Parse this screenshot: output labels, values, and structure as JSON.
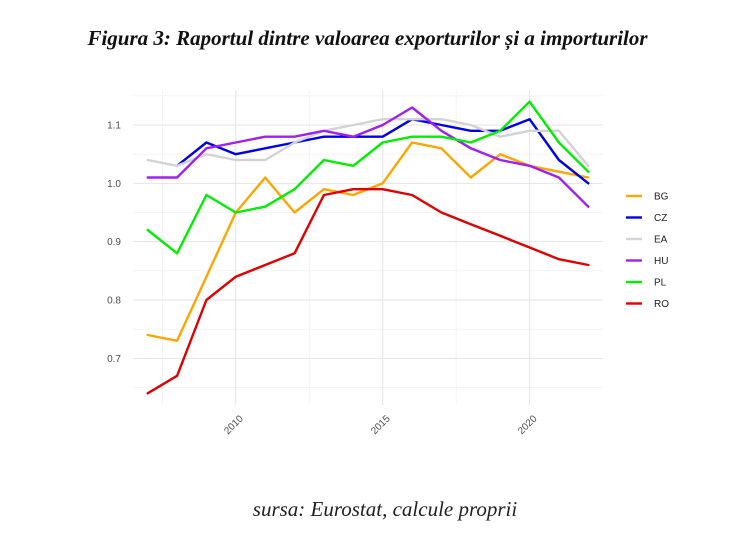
{
  "figure_title": "Figura 3: Raportul dintre valoarea exporturilor și a importurilor",
  "source_note": "sursa: Eurostat, calcule proprii",
  "chart_data": {
    "type": "line",
    "title": "",
    "xlabel": "",
    "ylabel": "",
    "x": [
      2007,
      2008,
      2009,
      2010,
      2011,
      2012,
      2013,
      2014,
      2015,
      2016,
      2017,
      2018,
      2019,
      2020,
      2021,
      2022
    ],
    "xlim": [
      2006.5,
      2022.5
    ],
    "ylim": [
      0.62,
      1.16
    ],
    "x_ticks": [
      2010,
      2015,
      2020
    ],
    "y_ticks": [
      0.7,
      0.8,
      0.9,
      1.0,
      1.1
    ],
    "grid": true,
    "legend_position": "right",
    "series": [
      {
        "name": "BG",
        "color": "#ffa500",
        "values": [
          0.74,
          0.73,
          0.84,
          0.95,
          1.01,
          0.95,
          0.99,
          0.98,
          1.0,
          1.07,
          1.06,
          1.01,
          1.05,
          1.03,
          1.02,
          1.01
        ]
      },
      {
        "name": "CZ",
        "color": "#0000e6",
        "values": [
          null,
          1.03,
          1.07,
          1.05,
          1.06,
          1.07,
          1.08,
          1.08,
          1.08,
          1.11,
          1.1,
          1.09,
          1.09,
          1.11,
          1.04,
          1.0
        ]
      },
      {
        "name": "EA",
        "color": "#d3d3d3",
        "values": [
          1.04,
          1.03,
          1.05,
          1.04,
          1.04,
          1.07,
          1.09,
          1.1,
          1.11,
          1.11,
          1.11,
          1.1,
          1.08,
          1.09,
          1.09,
          1.03
        ]
      },
      {
        "name": "HU",
        "color": "#a020f0",
        "values": [
          1.01,
          1.01,
          1.06,
          1.07,
          1.08,
          1.08,
          1.09,
          1.08,
          1.1,
          1.13,
          1.09,
          1.06,
          1.04,
          1.03,
          1.01,
          0.96
        ]
      },
      {
        "name": "PL",
        "color": "#00ee00",
        "values": [
          0.92,
          0.88,
          0.98,
          0.95,
          0.96,
          0.99,
          1.04,
          1.03,
          1.07,
          1.08,
          1.08,
          1.07,
          1.09,
          1.14,
          1.07,
          1.02
        ]
      },
      {
        "name": "RO",
        "color": "#e00000",
        "values": [
          0.64,
          0.67,
          0.8,
          0.84,
          0.86,
          0.88,
          0.98,
          0.99,
          0.99,
          0.98,
          0.95,
          0.93,
          0.91,
          0.89,
          0.87,
          0.86
        ]
      }
    ]
  }
}
